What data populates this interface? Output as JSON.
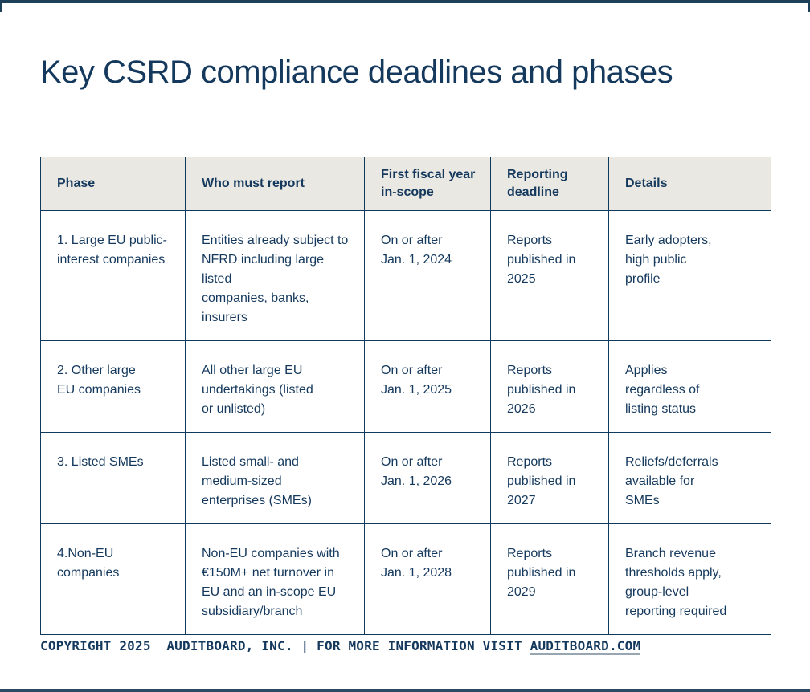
{
  "title": "Key CSRD compliance deadlines and phases",
  "table": {
    "headers": [
      "Phase",
      "Who must report",
      "First fiscal year\nin-scope",
      "Reporting\ndeadline",
      "Details"
    ],
    "rows": [
      {
        "phase": "1. Large EU public-\ninterest companies",
        "who": "Entities already subject to\nNFRD including large listed\ncompanies, banks, insurers",
        "fiscal_year": "On or after\nJan. 1, 2024",
        "deadline": "Reports\npublished in\n2025",
        "details": "Early adopters,\nhigh public\nprofile"
      },
      {
        "phase": "2. Other large\nEU companies",
        "who": "All other large EU\nundertakings (listed\nor unlisted)",
        "fiscal_year": "On or after\nJan. 1, 2025",
        "deadline": "Reports\npublished in\n2026",
        "details": "Applies\nregardless of\nlisting status"
      },
      {
        "phase": "3. Listed SMEs",
        "who": "Listed small- and\nmedium-sized\nenterprises (SMEs)",
        "fiscal_year": "On or after\nJan. 1, 2026",
        "deadline": "Reports\npublished in\n2027",
        "details": "Reliefs/deferrals\navailable for\nSMEs"
      },
      {
        "phase": "4.Non-EU companies",
        "who": "Non-EU companies with\n€150M+ net turnover in\nEU and an in-scope EU\nsubsidiary/branch",
        "fiscal_year": "On or after\nJan. 1, 2028",
        "deadline": "Reports\npublished in\n2029",
        "details": "Branch revenue\nthresholds apply,\ngroup-level\nreporting required"
      }
    ]
  },
  "footer": {
    "text_before": "COPYRIGHT 2025  AUDITBOARD, INC. | FOR MORE INFORMATION VISIT ",
    "link": "AUDITBOARD.COM"
  },
  "colors": {
    "navy_text": "#15395d",
    "header_background": "#e9e8e3",
    "table_border": "#0f3a5c",
    "page_rule": "#1d4158"
  }
}
